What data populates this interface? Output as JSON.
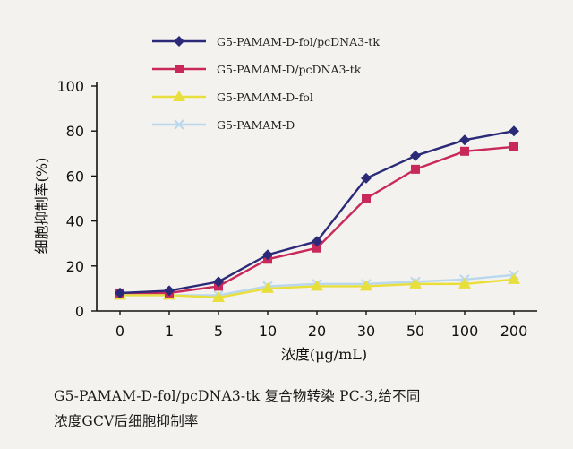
{
  "chart_data": {
    "type": "line",
    "ylabel": "细胞抑制率(%)",
    "xlabel": "浓度(μg/mL)",
    "categories": [
      "0",
      "1",
      "5",
      "10",
      "20",
      "30",
      "50",
      "100",
      "200"
    ],
    "ylim": [
      0,
      100
    ],
    "yticks": [
      "0",
      "20",
      "40",
      "60",
      "80",
      "100"
    ],
    "grid": false,
    "legend_position": "top-left",
    "series": [
      {
        "name": "G5-PAMAM-D-fol/pcDNA3-tk",
        "marker": "diamond",
        "color": "#2b2a78",
        "values": [
          8,
          9,
          13,
          25,
          31,
          59,
          69,
          76,
          80
        ]
      },
      {
        "name": "G5-PAMAM-D/pcDNA3-tk",
        "marker": "square",
        "color": "#c9285a",
        "values": [
          8,
          8,
          11,
          23,
          28,
          50,
          63,
          71,
          73
        ]
      },
      {
        "name": "G5-PAMAM-D-fol",
        "marker": "triangle",
        "color": "#e8df3c",
        "values": [
          7,
          7,
          6,
          10,
          11,
          11,
          12,
          12,
          14
        ]
      },
      {
        "name": "G5-PAMAM-D",
        "marker": "x",
        "color": "#b9d8ee",
        "values": [
          7,
          7,
          7,
          11,
          12,
          12,
          13,
          14,
          16
        ]
      }
    ]
  },
  "caption": {
    "line1": "G5-PAMAM-D-fol/pcDNA3-tk 复合物转染 PC-3,给不同",
    "line2": "浓度GCV后细胞抑制率"
  }
}
